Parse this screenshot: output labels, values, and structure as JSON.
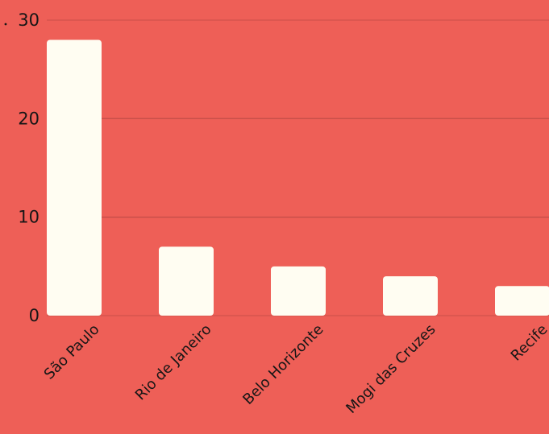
{
  "chart_data": {
    "type": "bar",
    "categories": [
      "São Paulo",
      "Rio de Janeiro",
      "Belo Horizonte",
      "Mogi das Cruzes",
      "Recife"
    ],
    "values": [
      28,
      7,
      5,
      4,
      3
    ],
    "ylim": [
      0,
      30
    ],
    "yticks": [
      "0",
      "10",
      "20",
      "30"
    ],
    "grid": "horizontal",
    "legend": "none",
    "colors": {
      "background": "#ee5f57",
      "bar": "#fffdf2",
      "grid": "#c94f4a",
      "text": "#161616"
    }
  }
}
